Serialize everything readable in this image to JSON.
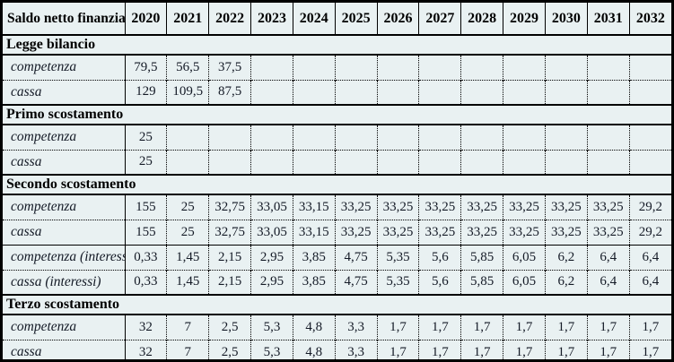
{
  "table": {
    "corner_label": "Saldo netto finanziare",
    "years": [
      "2020",
      "2021",
      "2022",
      "2023",
      "2024",
      "2025",
      "2026",
      "2027",
      "2028",
      "2029",
      "2030",
      "2031",
      "2032"
    ],
    "sections": [
      {
        "title": "Legge bilancio",
        "rows": [
          {
            "label": "competenza",
            "values": [
              "79,5",
              "56,5",
              "37,5",
              "",
              "",
              "",
              "",
              "",
              "",
              "",
              "",
              "",
              ""
            ]
          },
          {
            "label": "cassa",
            "values": [
              "129",
              "109,5",
              "87,5",
              "",
              "",
              "",
              "",
              "",
              "",
              "",
              "",
              "",
              ""
            ]
          }
        ]
      },
      {
        "title": "Primo scostamento",
        "rows": [
          {
            "label": "competenza",
            "values": [
              "25",
              "",
              "",
              "",
              "",
              "",
              "",
              "",
              "",
              "",
              "",
              "",
              ""
            ]
          },
          {
            "label": "cassa",
            "values": [
              "25",
              "",
              "",
              "",
              "",
              "",
              "",
              "",
              "",
              "",
              "",
              "",
              ""
            ]
          }
        ]
      },
      {
        "title": "Secondo scostamento",
        "rows": [
          {
            "label": "competenza",
            "values": [
              "155",
              "25",
              "32,75",
              "33,05",
              "33,15",
              "33,25",
              "33,25",
              "33,25",
              "33,25",
              "33,25",
              "33,25",
              "33,25",
              "29,2"
            ]
          },
          {
            "label": "cassa",
            "values": [
              "155",
              "25",
              "32,75",
              "33,05",
              "33,15",
              "33,25",
              "33,25",
              "33,25",
              "33,25",
              "33,25",
              "33,25",
              "33,25",
              "29,2"
            ]
          },
          {
            "label": "competenza (interessi)",
            "values": [
              "0,33",
              "1,45",
              "2,15",
              "2,95",
              "3,85",
              "4,75",
              "5,35",
              "5,6",
              "5,85",
              "6,05",
              "6,2",
              "6,4",
              "6,4"
            ]
          },
          {
            "label": "cassa (interessi)",
            "values": [
              "0,33",
              "1,45",
              "2,15",
              "2,95",
              "3,85",
              "4,75",
              "5,35",
              "5,6",
              "5,85",
              "6,05",
              "6,2",
              "6,4",
              "6,4"
            ]
          }
        ]
      },
      {
        "title": "Terzo scostamento",
        "rows": [
          {
            "label": "competenza",
            "values": [
              "32",
              "7",
              "2,5",
              "5,3",
              "4,8",
              "3,3",
              "1,7",
              "1,7",
              "1,7",
              "1,7",
              "1,7",
              "1,7",
              "1,7"
            ]
          },
          {
            "label": "cassa",
            "values": [
              "32",
              "7",
              "2,5",
              "5,3",
              "4,8",
              "3,3",
              "1,7",
              "1,7",
              "1,7",
              "1,7",
              "1,7",
              "1,7",
              "1,7"
            ]
          }
        ]
      }
    ]
  },
  "colors": {
    "background": "#e9f1f2",
    "border": "#000000",
    "text": "#141a26",
    "heading_text": "#000000"
  }
}
